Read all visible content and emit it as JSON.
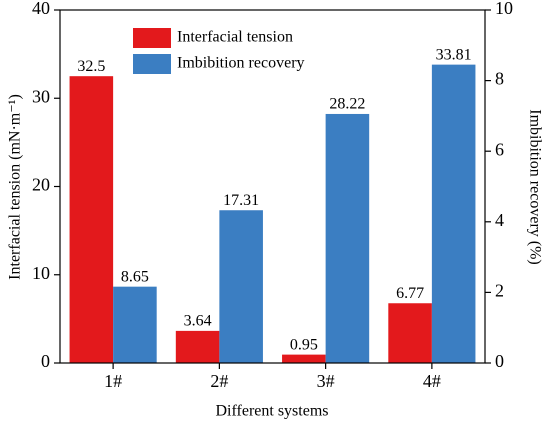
{
  "chart_data": {
    "type": "bar",
    "x_label": "Different systems",
    "y_label": "Interfacial tension (mN·m⁻¹)",
    "y2_label": "Imbibition recovery (%)",
    "categories": [
      "1#",
      "2#",
      "3#",
      "4#"
    ],
    "series": [
      {
        "name": "Interfacial tension",
        "color": "#e3191c",
        "values": [
          32.5,
          3.64,
          0.95,
          6.77
        ]
      },
      {
        "name": "Imbibition recovery",
        "color": "#3b7ec2",
        "values": [
          8.65,
          17.31,
          28.22,
          33.81
        ]
      }
    ],
    "ylim": [
      0,
      40
    ],
    "yticks": [
      0,
      10,
      20,
      30,
      40
    ],
    "y2lim": [
      0,
      10
    ],
    "y2ticks": [
      0,
      2,
      4,
      6,
      8,
      10
    ],
    "legend": "upper center"
  }
}
